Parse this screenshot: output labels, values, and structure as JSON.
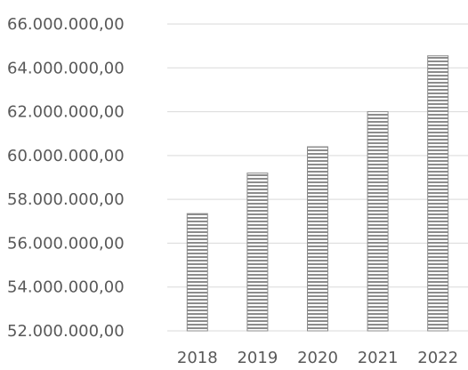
{
  "chart_data": {
    "type": "bar",
    "title": "",
    "xlabel": "",
    "ylabel": "",
    "categories": [
      "2018",
      "2019",
      "2020",
      "2021",
      "2022"
    ],
    "values": [
      57350000,
      59200000,
      60400000,
      62000000,
      64550000
    ],
    "ylim": [
      52000000,
      66000000
    ],
    "yticks": [
      52000000,
      54000000,
      56000000,
      58000000,
      60000000,
      62000000,
      64000000,
      66000000
    ],
    "ytick_labels": [
      "52.000.000,00",
      "54.000.000,00",
      "56.000.000,00",
      "58.000.000,00",
      "60.000.000,00",
      "62.000.000,00",
      "64.000.000,00",
      "66.000.000,00"
    ],
    "grid": true,
    "legend": "none",
    "bar_fill": "horizontal-stripes",
    "colors": {
      "stripe": "#8c8c8c",
      "grid": "#d9d9d9",
      "text": "#595959"
    }
  }
}
